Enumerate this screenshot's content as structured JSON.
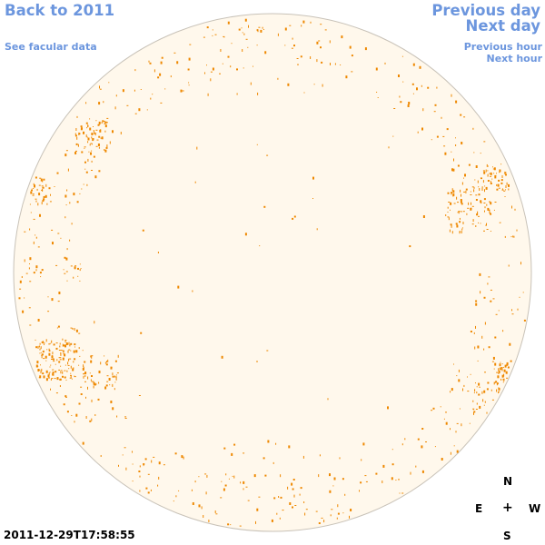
{
  "nav": {
    "back_year": "Back to 2011",
    "facular": "See facular data",
    "previous_day": "Previous day",
    "next_day": "Next day",
    "previous_hour": "Previous hour",
    "next_hour": "Next hour"
  },
  "compass": {
    "north": "N",
    "east": "E",
    "center": "+",
    "west": "W",
    "south": "S"
  },
  "timestamp": "2011-12-29T17:58:55",
  "colors": {
    "disk_fill": "#fff8ec",
    "disk_edge": "#c8c2b8",
    "facula": "#ee8800",
    "link": "#6c96de"
  }
}
